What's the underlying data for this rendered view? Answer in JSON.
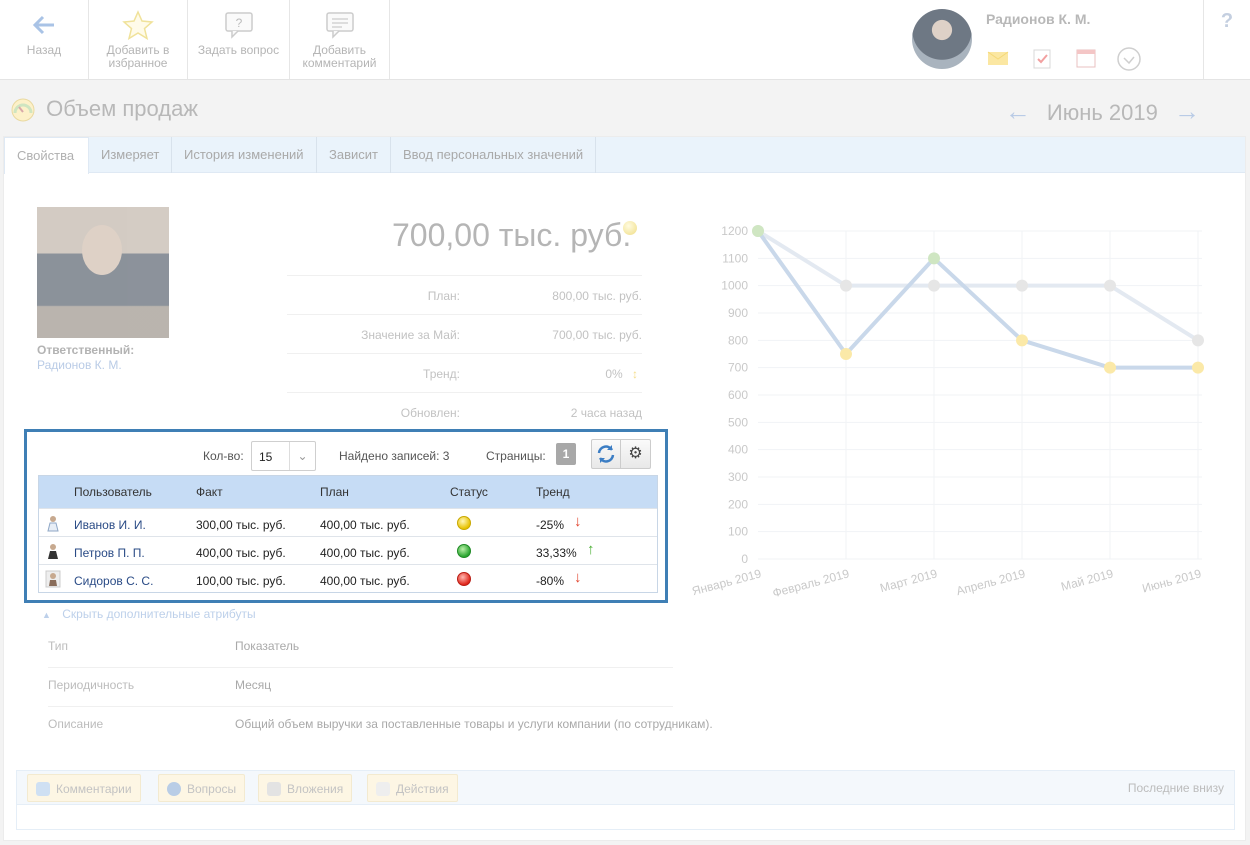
{
  "toolbar": {
    "back_label": "Назад",
    "fav_label_1": "Добавить в",
    "fav_label_2": "избранное",
    "ask_label": "Задать вопрос",
    "comment_label_1": "Добавить",
    "comment_label_2": "комментарий"
  },
  "user": {
    "name": "Радионов К. М."
  },
  "help": {
    "label": "?"
  },
  "page": {
    "title": "Объем продаж",
    "period": "Июнь 2019"
  },
  "tabs": [
    {
      "label": "Свойства"
    },
    {
      "label": "Измеряет"
    },
    {
      "label": "История изменений"
    },
    {
      "label": "Зависит"
    },
    {
      "label": "Ввод персональных значений"
    }
  ],
  "responsible": {
    "label": "Ответственный:",
    "name": "Радионов К. М."
  },
  "indicator": {
    "value": "700,00 тыс. руб.",
    "status_color": "#f4e6a0",
    "rows": [
      {
        "label": "План:",
        "value": "800,00 тыс. руб."
      },
      {
        "label": "Значение за Май:",
        "value": "700,00 тыс. руб."
      },
      {
        "label": "Тренд:",
        "value": "0%"
      },
      {
        "label": "Обновлен:",
        "value": "2 часа назад"
      }
    ]
  },
  "grid": {
    "kolvo_label": "Кол-во:",
    "kolvo_value": "15",
    "found_label": "Найдено записей: 3",
    "pages_label": "Страницы:",
    "page_number": "1",
    "columns": [
      "Пользователь",
      "Факт",
      "План",
      "Статус",
      "Тренд"
    ],
    "rows": [
      {
        "user": "Иванов И. И.",
        "fact": "300,00 тыс. руб.",
        "plan": "400,00 тыс. руб.",
        "status": "yellow",
        "trend": "-25%",
        "trend_dir": "down"
      },
      {
        "user": "Петров П. П.",
        "fact": "400,00 тыс. руб.",
        "plan": "400,00 тыс. руб.",
        "status": "green",
        "trend": "33,33%",
        "trend_dir": "up"
      },
      {
        "user": "Сидоров С. С.",
        "fact": "100,00 тыс. руб.",
        "plan": "400,00 тыс. руб.",
        "status": "red",
        "trend": "-80%",
        "trend_dir": "down"
      }
    ]
  },
  "attributes": {
    "hide_link": "Скрыть дополнительные атрибуты",
    "rows": [
      {
        "key": "Тип",
        "value": "Показатель"
      },
      {
        "key": "Периодичность",
        "value": "Месяц"
      },
      {
        "key": "Описание",
        "value": "Общий объем выручки за поставленные товары и услуги компании (по сотрудникам)."
      }
    ]
  },
  "bottom": {
    "tabs": [
      "Комментарии",
      "Вопросы",
      "Вложения",
      "Действия"
    ],
    "last_link": "Последние внизу"
  },
  "chart_data": {
    "type": "line",
    "categories": [
      "Январь 2019",
      "Февраль 2019",
      "Март 2019",
      "Апрель 2019",
      "Май 2019",
      "Июнь 2019"
    ],
    "ylim": [
      0,
      1200
    ],
    "yticks": [
      0,
      100,
      200,
      300,
      400,
      500,
      600,
      700,
      800,
      900,
      1000,
      1100,
      1200
    ],
    "grid": true,
    "series": [
      {
        "values": [
          1200,
          1000,
          1000,
          1000,
          1000,
          800
        ],
        "color": "#e3e9f1",
        "point_color": "#e6e6e6"
      },
      {
        "values": [
          1200,
          750,
          1100,
          800,
          700,
          700
        ],
        "color": "#c9d8ea",
        "point_colors": [
          "#cfe6c2",
          "#fbe9a8",
          "#cfe6c2",
          "#fbe9a8",
          "#fbe9a8",
          "#fbe9a8"
        ]
      }
    ]
  }
}
